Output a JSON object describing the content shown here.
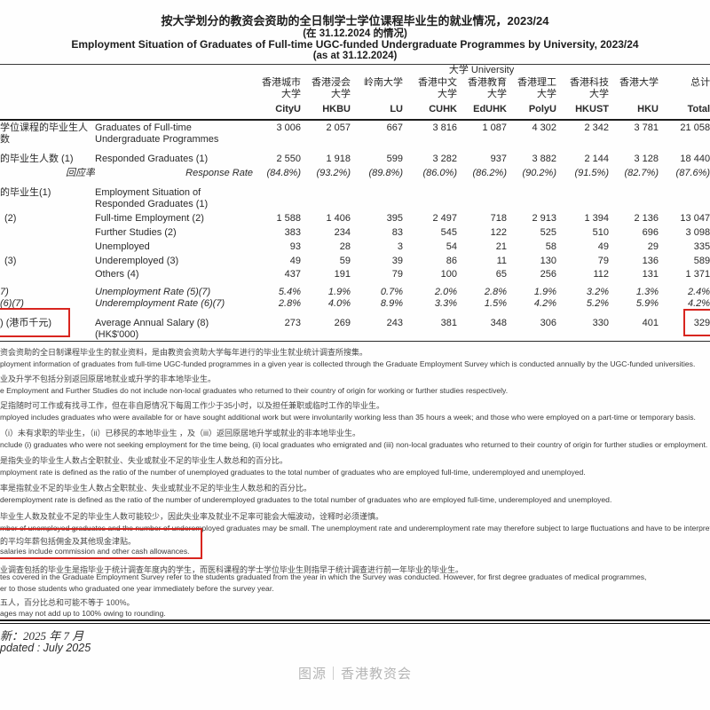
{
  "title": {
    "zh": "按大学划分的教资会资助的全日制学士学位课程毕业生的就业情况，2023/24",
    "zh_sub": "(在 31.12.2024 的情况)",
    "en": "Employment Situation of Graduates of Full-time UGC-funded Undergraduate Programmes by University, 2023/24",
    "en_sub": "(as at 31.12.2024)"
  },
  "table": {
    "group_header": "大学 University",
    "columns": [
      {
        "zh": [
          "香港城市",
          "大学"
        ],
        "abbr": "CityU"
      },
      {
        "zh": [
          "香港浸会",
          "大学"
        ],
        "abbr": "HKBU"
      },
      {
        "zh": [
          "岭南大学"
        ],
        "abbr": "LU"
      },
      {
        "zh": [
          "香港中文",
          "大学"
        ],
        "abbr": "CUHK"
      },
      {
        "zh": [
          "香港教育",
          "大学"
        ],
        "abbr": "EdUHK"
      },
      {
        "zh": [
          "香港理工",
          "大学"
        ],
        "abbr": "PolyU"
      },
      {
        "zh": [
          "香港科技",
          "大学"
        ],
        "abbr": "HKUST"
      },
      {
        "zh": [
          "香港大学"
        ],
        "abbr": "HKU"
      },
      {
        "zh": [
          "总计"
        ],
        "abbr": "Total"
      }
    ],
    "rows": [
      {
        "zh": "学位课程的毕业生人数",
        "en": "Graduates of Full-time",
        "en2": "Undergraduate Programmes",
        "values": [
          "3 006",
          "2 057",
          "667",
          "3 816",
          "1 087",
          "4 302",
          "2 342",
          "3 781",
          "21 058"
        ]
      },
      {
        "zh": "的毕业生人数 (1)",
        "en": "Responded Graduates (1)",
        "values": [
          "2 550",
          "1 918",
          "599",
          "3 282",
          "937",
          "3 882",
          "2 144",
          "3 128",
          "18 440"
        ]
      },
      {
        "zh": "回应率",
        "en": "Response Rate",
        "values": [
          "(84.8%)",
          "(93.2%)",
          "(89.8%)",
          "(86.0%)",
          "(86.2%)",
          "(90.2%)",
          "(91.5%)",
          "(82.7%)",
          "(87.6%)"
        ]
      },
      {
        "zh": "的毕业生(1)",
        "en": "Employment Situation of",
        "en2": "Responded Graduates (1)",
        "values": []
      },
      {
        "zh": "(2)",
        "en": "Full-time Employment (2)",
        "values": [
          "1 588",
          "1 406",
          "395",
          "2 497",
          "718",
          "2 913",
          "1 394",
          "2 136",
          "13 047"
        ]
      },
      {
        "zh": "",
        "en": "Further Studies (2)",
        "values": [
          "383",
          "234",
          "83",
          "545",
          "122",
          "525",
          "510",
          "696",
          "3 098"
        ]
      },
      {
        "zh": "",
        "en": "Unemployed",
        "values": [
          "93",
          "28",
          "3",
          "54",
          "21",
          "58",
          "49",
          "29",
          "335"
        ]
      },
      {
        "zh": "(3)",
        "en": "Underemployed (3)",
        "values": [
          "49",
          "59",
          "39",
          "86",
          "11",
          "130",
          "79",
          "136",
          "589"
        ]
      },
      {
        "zh": "",
        "en": "Others (4)",
        "values": [
          "437",
          "191",
          "79",
          "100",
          "65",
          "256",
          "112",
          "131",
          "1 371"
        ]
      },
      {
        "zh": "7)",
        "en": "Unemployment Rate (5)(7)",
        "values": [
          "5.4%",
          "1.9%",
          "0.7%",
          "2.0%",
          "2.8%",
          "1.9%",
          "3.2%",
          "1.3%",
          "2.4%"
        ]
      },
      {
        "zh": "(6)(7)",
        "en": "Underemployment Rate (6)(7)",
        "values": [
          "2.8%",
          "4.0%",
          "8.9%",
          "3.3%",
          "1.5%",
          "4.2%",
          "5.2%",
          "5.9%",
          "4.2%"
        ]
      },
      {
        "zh": ") (港币千元)",
        "en": "Average Annual Salary (8) (HK$'000)",
        "values": [
          "273",
          "269",
          "243",
          "381",
          "348",
          "306",
          "330",
          "401",
          "329"
        ]
      }
    ]
  },
  "notes": [
    "资会资助的全日制课程毕业生的就业资料，是由教资会资助大学每年进行的毕业生就业统计调查所搜集。",
    "ployment information of graduates from full-time UGC-funded programmes in a given year is collected through the Graduate Employment Survey which is conducted annually by the UGC-funded universities.",
    "业及升学不包括分别返回原居地就业或升学的非本地毕业生。",
    "e Employment and Further Studies do not include non-local graduates who returned to their country of origin for working or further studies respectively.",
    "足指随时可工作或有找寻工作，但在非自愿情况下每周工作少于35小时，以及担任兼职或临时工作的毕业生。",
    "mployed includes graduates who were available for or have sought additional work but were involuntarily working less than 35 hours a week; and those who were employed on a part-time or temporary basis.",
    "（i）未有求职的毕业生，（ii）已移民的本地毕业生 ，及（iii）返回原居地升学或就业的非本地毕业生。",
    "nclude (i) graduates who were not seeking employment for the time being, (ii) local graduates who emigrated and (iii) non-local graduates who returned to their country of origin for further studies or employment.",
    "是指失业的毕业生人数占全职就业、失业或就业不足的毕业生人数总和的百分比。",
    "mployment rate is defined as the ratio of the number of unemployed graduates to the total number of graduates who are employed full-time, underemployed and unemployed.",
    "率是指就业不足的毕业生人数占全职就业、失业或就业不足的毕业生人数总和的百分比。",
    "deremployment rate is defined as the ratio of the number of underemployed graduates to the total number of graduates who are employed full-time, underemployed and unemployed.",
    "毕业生人数及就业不足的毕业生人数可能较少，因此失业率及就业不足率可能会大幅波动，诠释时必须谨慎。",
    "mber of unemployed graduates and the number of underemployed graduates may be small.  The unemployment rate and underemployment rate may therefore subject to large fluctuations and have to be interpreted with cau",
    "的平均年薪包括佣金及其他现金津贴。",
    "salaries include commission and other cash allowances.",
    "业调查包括的毕业生是指毕业于统计调查年度内的学生，而医科课程的学士学位毕业生则指早于统计调查进行前一年毕业的毕业生。",
    "tes covered in the Graduate Employment Survey refer to the students graduated from the year in which the Survey was conducted. However, for first degree graduates of medical programmes,",
    "er to those students who graduated one year immediately before the survey year.",
    "五人，百分比总和可能不等于 100%。",
    "ages may not add up to 100% owing to rounding."
  ],
  "footer": {
    "updated_zh": "新：2025 年 7 月",
    "updated_en": "pdated : July 2025"
  },
  "caption": "图源｜香港教资会",
  "colors": {
    "highlight_red": "#d8251f"
  }
}
